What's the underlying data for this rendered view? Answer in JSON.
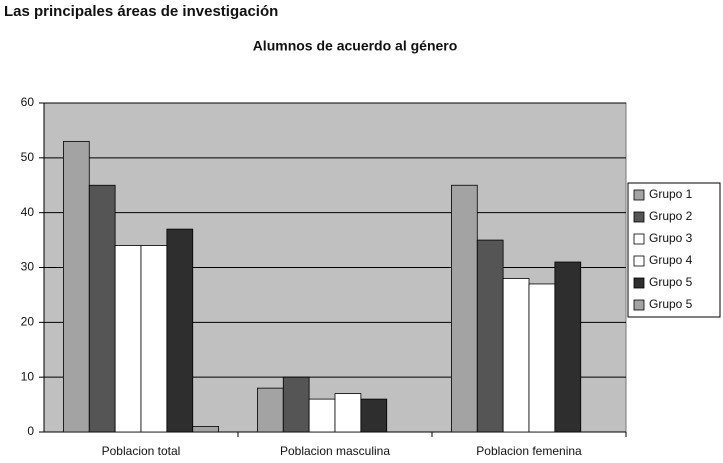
{
  "heading": "Las principales áreas de investigación",
  "chart_data": {
    "type": "bar",
    "title": "Alumnos de acuerdo al género",
    "categories": [
      "Poblacion total",
      "Poblacion masculina",
      "Poblacion femenina"
    ],
    "series": [
      {
        "name": "Grupo 1",
        "color": "#a3a3a3",
        "values": [
          53,
          8,
          45
        ]
      },
      {
        "name": "Grupo 2",
        "color": "#555555",
        "values": [
          45,
          10,
          35
        ]
      },
      {
        "name": "Grupo 3",
        "color": "#ffffff",
        "values": [
          34,
          6,
          28
        ]
      },
      {
        "name": "Grupo 4",
        "color": "#ffffff",
        "values": [
          34,
          7,
          27
        ]
      },
      {
        "name": "Grupo 5",
        "color": "#2e2e2e",
        "values": [
          37,
          6,
          31
        ]
      },
      {
        "name": "Grupo 5",
        "color": "#a3a3a3",
        "values": [
          1,
          0,
          0
        ]
      }
    ],
    "ylim": [
      0,
      60
    ],
    "yticks": [
      0,
      10,
      20,
      30,
      40,
      50,
      60
    ],
    "grid": true,
    "legend": "right",
    "plot_background": "#c0c0c0"
  }
}
